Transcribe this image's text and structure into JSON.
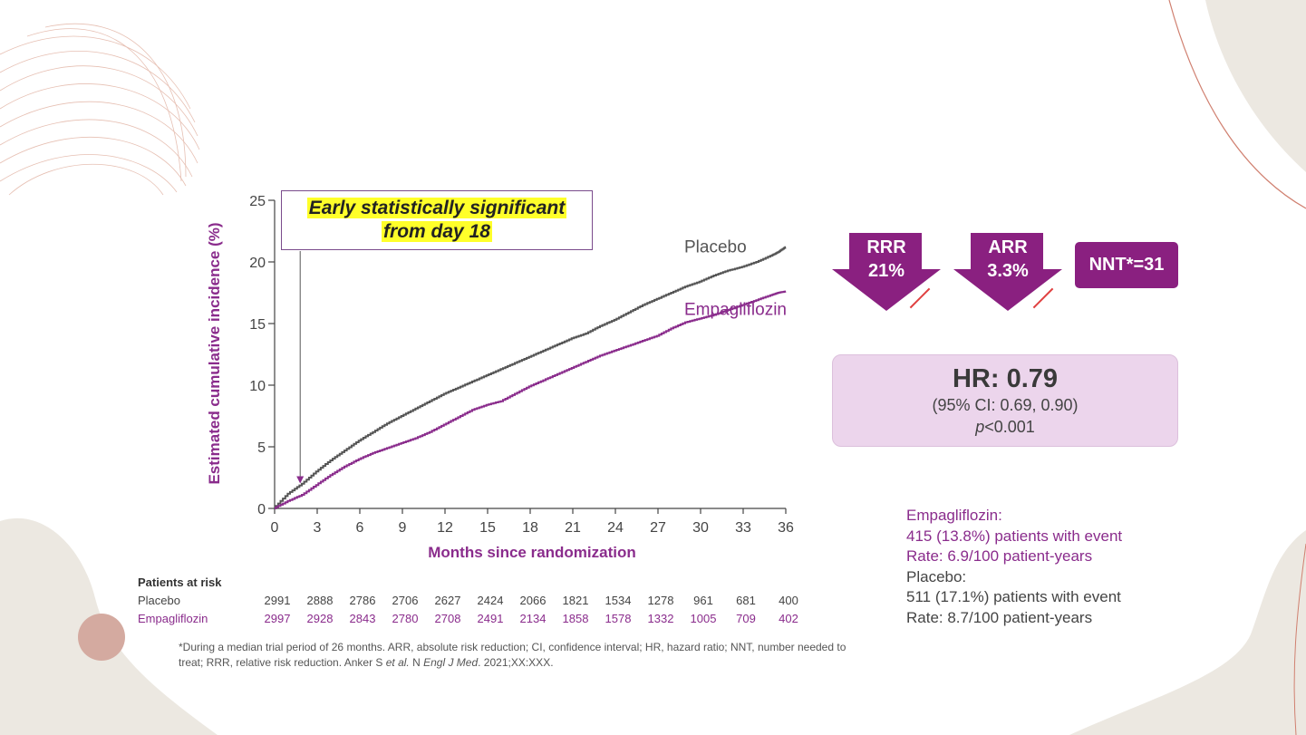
{
  "callout": {
    "line1": "Early statistically significant",
    "line2": "from day 18"
  },
  "badges": {
    "rrr": {
      "label": "RRR",
      "value": "21%"
    },
    "arr": {
      "label": "ARR",
      "value": "3.3%"
    },
    "nnt": "NNT*=31"
  },
  "hr_box": {
    "title": "HR: 0.79",
    "ci": "(95% CI: 0.69, 0.90)",
    "p_italic": "p",
    "p_rest": "<0.001"
  },
  "stats": {
    "empagliflozin_label": "Empagliflozin:",
    "empagliflozin_events": "415 (13.8%) patients with event",
    "empagliflozin_rate": "Rate: 6.9/100 patient-years",
    "placebo_label": "Placebo:",
    "placebo_events": "511 (17.1%) patients with event",
    "placebo_rate": "Rate: 8.7/100 patient-years"
  },
  "risk_table": {
    "title": "Patients at risk",
    "placebo_label": "Placebo",
    "empagliflozin_label": "Empagliflozin",
    "placebo": [
      "2991",
      "2888",
      "2786",
      "2706",
      "2627",
      "2424",
      "2066",
      "1821",
      "1534",
      "1278",
      "961",
      "681",
      "400"
    ],
    "empagliflozin": [
      "2997",
      "2928",
      "2843",
      "2780",
      "2708",
      "2491",
      "2134",
      "1858",
      "1578",
      "1332",
      "1005",
      "709",
      "402"
    ]
  },
  "footnote": {
    "line1": "*During a median trial period of 26 months. ARR, absolute risk reduction; CI, confidence interval; HR, hazard ratio; NNT, number needed to",
    "line2_a": "treat; RRR, relative risk reduction.   Anker S ",
    "line2_i": "et al.",
    "line2_b": " N ",
    "line2_j": "Engl J Med",
    "line2_c": ". 2021;XX:XXX."
  },
  "colors": {
    "placebo": "#555555",
    "empagliflozin": "#8a2c8c",
    "badge": "#8a2080",
    "accent": "#d4aaa0"
  },
  "chart_data": {
    "type": "line",
    "xlabel": "Months since randomization",
    "ylabel": "Estimated cumulative incidence (%)",
    "xlim": [
      0,
      36
    ],
    "ylim": [
      0,
      25
    ],
    "x_ticks": [
      0,
      3,
      6,
      9,
      12,
      15,
      18,
      21,
      24,
      27,
      30,
      33,
      36
    ],
    "y_ticks": [
      0,
      5,
      10,
      15,
      20,
      25
    ],
    "grid": false,
    "series": [
      {
        "name": "Placebo",
        "x": [
          0,
          1,
          2,
          3,
          4,
          5,
          6,
          7,
          8,
          9,
          10,
          11,
          12,
          13,
          14,
          15,
          16,
          17,
          18,
          19,
          20,
          21,
          22,
          23,
          24,
          25,
          26,
          27,
          28,
          29,
          30,
          31,
          32,
          33,
          34,
          35,
          35.5,
          36
        ],
        "y": [
          0,
          1.2,
          2.0,
          3.0,
          3.9,
          4.7,
          5.5,
          6.2,
          6.9,
          7.5,
          8.1,
          8.7,
          9.3,
          9.8,
          10.3,
          10.8,
          11.3,
          11.8,
          12.3,
          12.8,
          13.3,
          13.8,
          14.2,
          14.8,
          15.3,
          15.9,
          16.5,
          17.0,
          17.5,
          18.0,
          18.4,
          18.9,
          19.3,
          19.6,
          20.0,
          20.5,
          20.8,
          21.2
        ]
      },
      {
        "name": "Empagliflozin",
        "x": [
          0,
          1,
          2,
          3,
          4,
          5,
          6,
          7,
          8,
          9,
          10,
          11,
          12,
          13,
          14,
          15,
          16,
          17,
          18,
          19,
          20,
          21,
          22,
          23,
          24,
          25,
          26,
          27,
          28,
          29,
          30,
          31,
          32,
          33,
          34,
          35,
          35.5,
          36
        ],
        "y": [
          0,
          0.6,
          1.1,
          1.9,
          2.7,
          3.4,
          4.0,
          4.5,
          4.9,
          5.3,
          5.7,
          6.2,
          6.8,
          7.4,
          8.0,
          8.4,
          8.7,
          9.3,
          9.9,
          10.4,
          10.9,
          11.4,
          11.9,
          12.4,
          12.8,
          13.2,
          13.6,
          14.0,
          14.6,
          15.1,
          15.4,
          15.7,
          16.1,
          16.5,
          16.9,
          17.3,
          17.5,
          17.6
        ]
      }
    ],
    "annotations": [
      {
        "text_ref": "callout",
        "x": 1.8,
        "y": 1.8
      }
    ]
  }
}
